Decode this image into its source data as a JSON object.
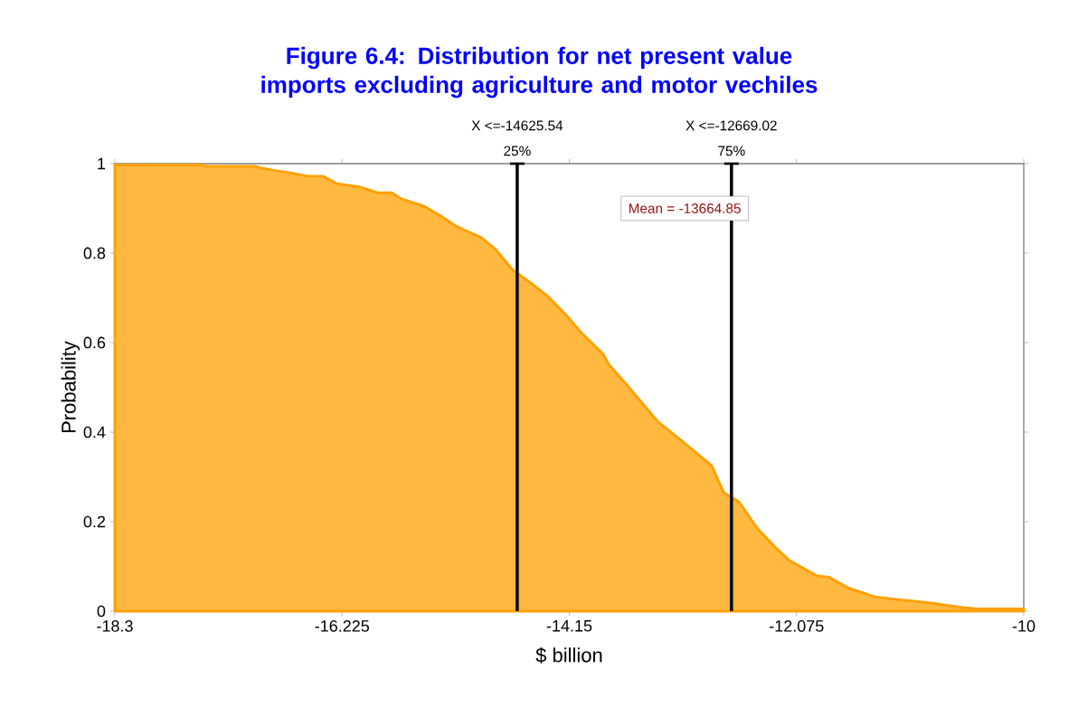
{
  "chart_data": {
    "type": "area",
    "title": "Figure 6.4:  Distribution for net present value imports excluding agriculture and motor vechiles",
    "xlabel": "$ billion",
    "ylabel": "Probability",
    "x": [
      -18.3,
      -17.49,
      -17.47,
      -17.02,
      -16.98,
      -16.85,
      -16.71,
      -16.54,
      -16.4,
      -16.27,
      -16.07,
      -15.9,
      -15.77,
      -15.69,
      -15.47,
      -15.33,
      -15.19,
      -14.95,
      -14.83,
      -14.67,
      -14.5,
      -14.34,
      -14.17,
      -14.04,
      -13.84,
      -13.79,
      -13.63,
      -13.34,
      -13.13,
      -12.85,
      -12.74,
      -12.6,
      -12.44,
      -12.27,
      -12.14,
      -11.89,
      -11.78,
      -11.61,
      -11.36,
      -11.15,
      -10.98,
      -10.78,
      -10.59,
      -10.43,
      -10.0
    ],
    "series": [
      {
        "color": "#ffa000",
        "values": [
          0.997,
          0.997,
          0.994,
          0.994,
          0.991,
          0.985,
          0.98,
          0.972,
          0.972,
          0.955,
          0.948,
          0.935,
          0.935,
          0.922,
          0.904,
          0.884,
          0.861,
          0.834,
          0.81,
          0.763,
          0.733,
          0.702,
          0.659,
          0.622,
          0.574,
          0.551,
          0.507,
          0.423,
          0.382,
          0.325,
          0.265,
          0.244,
          0.187,
          0.143,
          0.113,
          0.079,
          0.076,
          0.053,
          0.032,
          0.026,
          0.022,
          0.016,
          0.009,
          0.005,
          0.005
        ]
      }
    ],
    "xlim": [
      -18.3,
      -10
    ],
    "xticks": [
      -18.3,
      -16.225,
      -14.15,
      -12.075,
      -10
    ],
    "ylim": [
      0,
      1
    ],
    "yticks": [
      0,
      0.2,
      0.4,
      0.6,
      0.8,
      1
    ],
    "ref_lines": [
      {
        "axis": "x",
        "value": -14.62554,
        "label": "X <=-14625.54",
        "color": "#000000"
      },
      {
        "axis": "x",
        "value": -12.66902,
        "label": "X <=-12669.02",
        "color": "#000000"
      }
    ],
    "annotations": [
      {
        "text": "25%",
        "x": -14.62554,
        "y": 1
      },
      {
        "text": "75%",
        "x": -12.66902,
        "y": 1
      },
      "Mean = -13664.85"
    ],
    "grid": false
  }
}
